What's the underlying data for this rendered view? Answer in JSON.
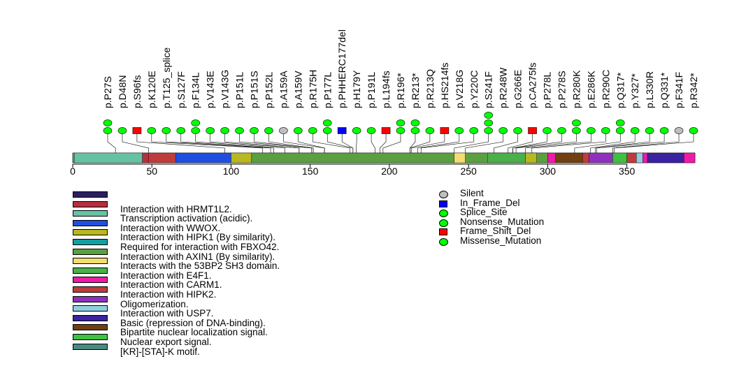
{
  "chart_data": {
    "type": "lollipop",
    "protein_length": 393,
    "axis": {
      "ticks": [
        0,
        50,
        100,
        150,
        200,
        250,
        300,
        350
      ],
      "range": [
        0,
        393
      ]
    },
    "mutation_types": [
      {
        "name": "Silent",
        "color": "#bebebe",
        "shape": "circle"
      },
      {
        "name": "In_Frame_Del",
        "color": "#0000ff",
        "shape": "square"
      },
      {
        "name": "Splice_Site",
        "color": "#00ff00",
        "shape": "circle"
      },
      {
        "name": "Nonsense_Mutation",
        "color": "#00ff00",
        "shape": "circle"
      },
      {
        "name": "Frame_Shift_Del",
        "color": "#ff0000",
        "shape": "square"
      },
      {
        "name": "Missense_Mutation",
        "color": "#00ff00",
        "shape": "circle"
      }
    ],
    "mutations": [
      {
        "label": "p.P27S",
        "position": 27,
        "type": "Missense_Mutation",
        "count": 2
      },
      {
        "label": "p.D48N",
        "position": 48,
        "type": "Missense_Mutation",
        "count": 1
      },
      {
        "label": "p.S96fs",
        "position": 96,
        "type": "Frame_Shift_Del",
        "count": 1
      },
      {
        "label": "p.K120E",
        "position": 120,
        "type": "Missense_Mutation",
        "count": 1
      },
      {
        "label": "p.T125_splice",
        "position": 125,
        "type": "Splice_Site",
        "count": 1
      },
      {
        "label": "p.S127F",
        "position": 127,
        "type": "Missense_Mutation",
        "count": 1
      },
      {
        "label": "p.F134L",
        "position": 134,
        "type": "Missense_Mutation",
        "count": 2
      },
      {
        "label": "p.V143E",
        "position": 143,
        "type": "Missense_Mutation",
        "count": 1
      },
      {
        "label": "p.V143G",
        "position": 143,
        "type": "Missense_Mutation",
        "count": 1
      },
      {
        "label": "p.P151L",
        "position": 151,
        "type": "Missense_Mutation",
        "count": 1
      },
      {
        "label": "p.P151S",
        "position": 151,
        "type": "Missense_Mutation",
        "count": 1
      },
      {
        "label": "p.P152L",
        "position": 152,
        "type": "Missense_Mutation",
        "count": 1
      },
      {
        "label": "p.A159A",
        "position": 159,
        "type": "Silent",
        "count": 1
      },
      {
        "label": "p.A159V",
        "position": 159,
        "type": "Missense_Mutation",
        "count": 1
      },
      {
        "label": "p.R175H",
        "position": 175,
        "type": "Missense_Mutation",
        "count": 1
      },
      {
        "label": "p.P177L",
        "position": 177,
        "type": "Missense_Mutation",
        "count": 2
      },
      {
        "label": "p.PHHERC177del",
        "position": 177,
        "type": "In_Frame_Del",
        "count": 1
      },
      {
        "label": "p.H179Y",
        "position": 179,
        "type": "Missense_Mutation",
        "count": 1
      },
      {
        "label": "p.P191L",
        "position": 191,
        "type": "Missense_Mutation",
        "count": 1
      },
      {
        "label": "p.L194fs",
        "position": 194,
        "type": "Frame_Shift_Del",
        "count": 1
      },
      {
        "label": "p.R196*",
        "position": 196,
        "type": "Nonsense_Mutation",
        "count": 2
      },
      {
        "label": "p.R213*",
        "position": 213,
        "type": "Nonsense_Mutation",
        "count": 2
      },
      {
        "label": "p.R213Q",
        "position": 213,
        "type": "Missense_Mutation",
        "count": 1
      },
      {
        "label": "p.HS214fs",
        "position": 214,
        "type": "Frame_Shift_Del",
        "count": 1
      },
      {
        "label": "p.V218G",
        "position": 218,
        "type": "Missense_Mutation",
        "count": 1
      },
      {
        "label": "p.Y220C",
        "position": 220,
        "type": "Missense_Mutation",
        "count": 1
      },
      {
        "label": "p.S241F",
        "position": 241,
        "type": "Missense_Mutation",
        "count": 3
      },
      {
        "label": "p.R248W",
        "position": 248,
        "type": "Missense_Mutation",
        "count": 1
      },
      {
        "label": "p.G266E",
        "position": 266,
        "type": "Missense_Mutation",
        "count": 1
      },
      {
        "label": "p.CA275fs",
        "position": 275,
        "type": "Frame_Shift_Del",
        "count": 1
      },
      {
        "label": "p.P278L",
        "position": 278,
        "type": "Missense_Mutation",
        "count": 1
      },
      {
        "label": "p.P278S",
        "position": 278,
        "type": "Missense_Mutation",
        "count": 1
      },
      {
        "label": "p.R280K",
        "position": 280,
        "type": "Missense_Mutation",
        "count": 2
      },
      {
        "label": "p.E286K",
        "position": 286,
        "type": "Missense_Mutation",
        "count": 1
      },
      {
        "label": "p.R290C",
        "position": 290,
        "type": "Missense_Mutation",
        "count": 1
      },
      {
        "label": "p.Q317*",
        "position": 317,
        "type": "Nonsense_Mutation",
        "count": 2
      },
      {
        "label": "p.Y327*",
        "position": 327,
        "type": "Nonsense_Mutation",
        "count": 1
      },
      {
        "label": "p.L330R",
        "position": 330,
        "type": "Missense_Mutation",
        "count": 1
      },
      {
        "label": "p.Q331*",
        "position": 331,
        "type": "Nonsense_Mutation",
        "count": 1
      },
      {
        "label": "p.F341F",
        "position": 341,
        "type": "Silent",
        "count": 1
      },
      {
        "label": "p.R342*",
        "position": 342,
        "type": "Nonsense_Mutation",
        "count": 1
      }
    ],
    "domains": [
      {
        "name": "Transcription activation (acidic).",
        "start": 1,
        "end": 44,
        "color": "#66c2a5"
      },
      {
        "name": "Interaction with HRMT1L2.",
        "start": 44,
        "end": 48,
        "color": "#b5303f"
      },
      {
        "name": "Interaction with HIPK2.",
        "start": 48,
        "end": 65,
        "color": "#c03c3c"
      },
      {
        "name": "Interaction with WWOX.",
        "start": 65,
        "end": 100,
        "color": "#1f4fe0"
      },
      {
        "name": "Interaction with HIPK1 (By similarity).",
        "start": 100,
        "end": 113,
        "color": "#b8b820"
      },
      {
        "name": "Interaction with AXIN1 (By similarity).",
        "start": 113,
        "end": 241,
        "color": "#5ba040"
      },
      {
        "name": "Interacts with the 53BP2 SH3 domain.",
        "start": 241,
        "end": 248,
        "color": "#f5dc6e"
      },
      {
        "name": "Interaction with AXIN1 (By similarity).",
        "start": 248,
        "end": 300,
        "color": "#5ba040"
      },
      {
        "name": "Interaction with E4F1.",
        "start": 262,
        "end": 286,
        "color": "#4ab04a"
      },
      {
        "name": "Interaction with HIPK1 (By similarity).",
        "start": 286,
        "end": 293,
        "color": "#b8b820"
      },
      {
        "name": "Interaction with CARM1.",
        "start": 300,
        "end": 305,
        "color": "#f01aa5"
      },
      {
        "name": "Bipartite nuclear localization signal.",
        "start": 305,
        "end": 322,
        "color": "#704010"
      },
      {
        "name": "Interaction with HIPK2.",
        "start": 322,
        "end": 326,
        "color": "#c03c3c"
      },
      {
        "name": "Oligomerization.",
        "start": 326,
        "end": 341,
        "color": "#9030c0"
      },
      {
        "name": "Nuclear export signal.",
        "start": 341,
        "end": 350,
        "color": "#40c040"
      },
      {
        "name": "Interaction with HIPK2.",
        "start": 350,
        "end": 356,
        "color": "#c03c3c"
      },
      {
        "name": "Interaction with USP7.",
        "start": 356,
        "end": 360,
        "color": "#8fcfe0"
      },
      {
        "name": "Interaction with CARM1.",
        "start": 360,
        "end": 363,
        "color": "#f01aa5"
      },
      {
        "name": "Basic (repression of DNA-binding).",
        "start": 363,
        "end": 386,
        "color": "#3b22a0"
      },
      {
        "name": "Interaction with CARM1.",
        "start": 386,
        "end": 393,
        "color": "#f01aa5"
      }
    ],
    "domain_legend": [
      {
        "label": "",
        "color": "#2a2060"
      },
      {
        "label": "Interaction with HRMT1L2.",
        "color": "#b5303f"
      },
      {
        "label": "Transcription activation (acidic).",
        "color": "#66c2a5"
      },
      {
        "label": "Interaction with WWOX.",
        "color": "#1f4fe0"
      },
      {
        "label": "Interaction with HIPK1 (By similarity).",
        "color": "#b8b820"
      },
      {
        "label": "Required for interaction with FBXO42.",
        "color": "#10a0a0"
      },
      {
        "label": "Interaction with AXIN1 (By similarity).",
        "color": "#5ba040"
      },
      {
        "label": "Interacts with the 53BP2 SH3 domain.",
        "color": "#f5dc6e"
      },
      {
        "label": "Interaction with E4F1.",
        "color": "#4ab04a"
      },
      {
        "label": "Interaction with CARM1.",
        "color": "#f01aa5"
      },
      {
        "label": "Interaction with HIPK2.",
        "color": "#c03c3c"
      },
      {
        "label": "Oligomerization.",
        "color": "#9030c0"
      },
      {
        "label": "Interaction with USP7.",
        "color": "#8fcfe0"
      },
      {
        "label": "Basic (repression of DNA-binding).",
        "color": "#3b22a0"
      },
      {
        "label": "Bipartite nuclear localization signal.",
        "color": "#704010"
      },
      {
        "label": "Nuclear export signal.",
        "color": "#40c040"
      },
      {
        "label": "[KR]-[STA]-K motif.",
        "color": "#4a8a80"
      }
    ]
  }
}
